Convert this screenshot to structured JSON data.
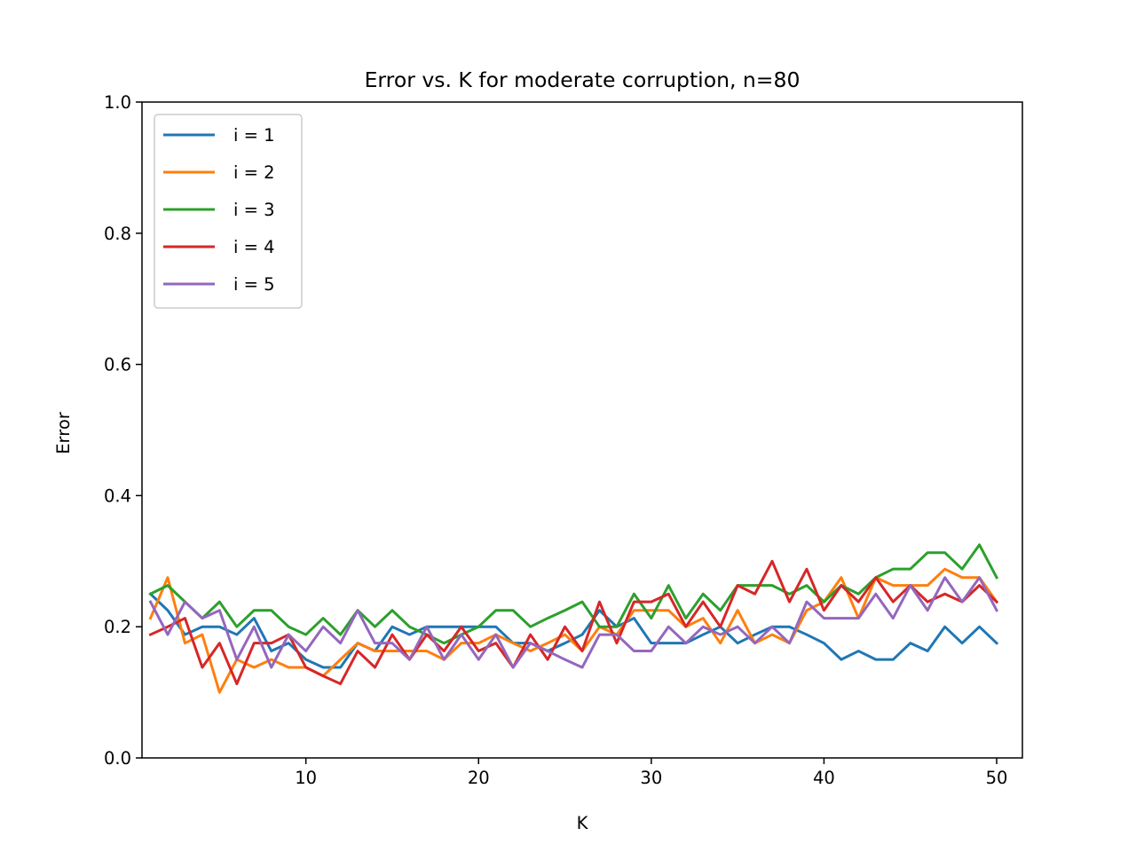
{
  "chart_data": {
    "type": "line",
    "title": "Error vs. K for moderate corruption, n=80",
    "xlabel": "K",
    "ylabel": "Error",
    "xlim": [
      1,
      50
    ],
    "ylim": [
      0,
      1
    ],
    "xticks": [
      10,
      20,
      30,
      40,
      50
    ],
    "yticks": [
      0.0,
      0.2,
      0.4,
      0.6,
      0.8,
      1.0
    ],
    "ytick_labels": [
      "0.0",
      "0.2",
      "0.4",
      "0.6",
      "0.8",
      "1.0"
    ],
    "grid": false,
    "legend_position": "top-left",
    "x": [
      1,
      2,
      3,
      4,
      5,
      6,
      7,
      8,
      9,
      10,
      11,
      12,
      13,
      14,
      15,
      16,
      17,
      18,
      19,
      20,
      21,
      22,
      23,
      24,
      25,
      26,
      27,
      28,
      29,
      30,
      31,
      32,
      33,
      34,
      35,
      36,
      37,
      38,
      39,
      40,
      41,
      42,
      43,
      44,
      45,
      46,
      47,
      48,
      49,
      50
    ],
    "series": [
      {
        "name": "i = 1",
        "color": "#1f77b4",
        "values": [
          0.25,
          0.225,
          0.188,
          0.2,
          0.2,
          0.188,
          0.213,
          0.163,
          0.175,
          0.15,
          0.138,
          0.138,
          0.175,
          0.163,
          0.2,
          0.188,
          0.2,
          0.2,
          0.2,
          0.2,
          0.2,
          0.175,
          0.175,
          0.163,
          0.175,
          0.188,
          0.225,
          0.2,
          0.213,
          0.175,
          0.175,
          0.175,
          0.188,
          0.2,
          0.175,
          0.188,
          0.2,
          0.2,
          0.188,
          0.175,
          0.15,
          0.163,
          0.15,
          0.15,
          0.175,
          0.163,
          0.2,
          0.175,
          0.2,
          0.175
        ]
      },
      {
        "name": "i = 2",
        "color": "#ff7f0e",
        "values": [
          0.213,
          0.275,
          0.175,
          0.188,
          0.1,
          0.15,
          0.138,
          0.15,
          0.138,
          0.138,
          0.125,
          0.15,
          0.175,
          0.163,
          0.163,
          0.163,
          0.163,
          0.15,
          0.175,
          0.175,
          0.188,
          0.175,
          0.163,
          0.175,
          0.188,
          0.163,
          0.2,
          0.188,
          0.225,
          0.225,
          0.225,
          0.2,
          0.213,
          0.175,
          0.225,
          0.175,
          0.188,
          0.175,
          0.225,
          0.238,
          0.275,
          0.213,
          0.275,
          0.263,
          0.263,
          0.263,
          0.288,
          0.275,
          0.275,
          0.238
        ]
      },
      {
        "name": "i = 3",
        "color": "#2ca02c",
        "values": [
          0.25,
          0.263,
          0.238,
          0.213,
          0.238,
          0.2,
          0.225,
          0.225,
          0.2,
          0.188,
          0.213,
          0.188,
          0.225,
          0.2,
          0.225,
          0.2,
          0.188,
          0.175,
          0.188,
          0.2,
          0.225,
          0.225,
          0.2,
          0.213,
          0.225,
          0.238,
          0.2,
          0.2,
          0.25,
          0.213,
          0.263,
          0.213,
          0.25,
          0.225,
          0.263,
          0.263,
          0.263,
          0.25,
          0.263,
          0.238,
          0.263,
          0.25,
          0.275,
          0.288,
          0.288,
          0.313,
          0.313,
          0.288,
          0.325,
          0.275
        ]
      },
      {
        "name": "i = 4",
        "color": "#d62728",
        "values": [
          0.188,
          0.2,
          0.213,
          0.138,
          0.175,
          0.113,
          0.175,
          0.175,
          0.188,
          0.138,
          0.125,
          0.113,
          0.163,
          0.138,
          0.188,
          0.15,
          0.188,
          0.163,
          0.2,
          0.163,
          0.175,
          0.138,
          0.188,
          0.15,
          0.2,
          0.163,
          0.238,
          0.175,
          0.238,
          0.238,
          0.25,
          0.2,
          0.238,
          0.2,
          0.263,
          0.25,
          0.3,
          0.238,
          0.288,
          0.225,
          0.263,
          0.238,
          0.275,
          0.238,
          0.263,
          0.238,
          0.25,
          0.238,
          0.263,
          0.238
        ]
      },
      {
        "name": "i = 5",
        "color": "#9467bd",
        "values": [
          0.238,
          0.188,
          0.238,
          0.213,
          0.225,
          0.15,
          0.2,
          0.138,
          0.188,
          0.163,
          0.2,
          0.175,
          0.225,
          0.175,
          0.175,
          0.15,
          0.2,
          0.15,
          0.188,
          0.15,
          0.188,
          0.138,
          0.175,
          0.163,
          0.15,
          0.138,
          0.188,
          0.188,
          0.163,
          0.163,
          0.2,
          0.175,
          0.2,
          0.188,
          0.2,
          0.175,
          0.2,
          0.175,
          0.238,
          0.213,
          0.213,
          0.213,
          0.25,
          0.213,
          0.263,
          0.225,
          0.275,
          0.238,
          0.275,
          0.225
        ]
      }
    ]
  }
}
